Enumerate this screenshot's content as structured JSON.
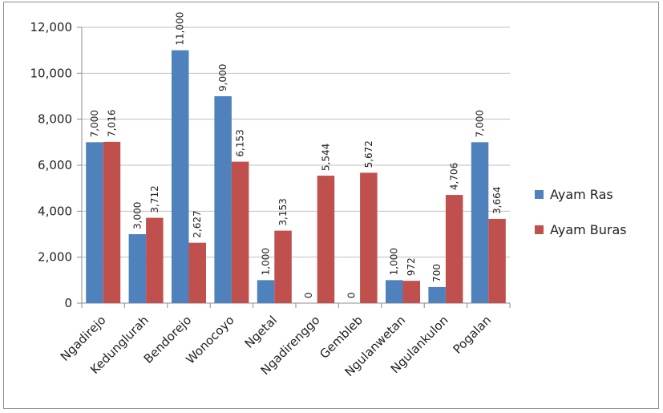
{
  "chart_data": {
    "type": "bar",
    "title": "",
    "xlabel": "",
    "ylabel": "",
    "ylim": [
      0,
      12000
    ],
    "yticks": [
      "0",
      "2,000",
      "4,000",
      "6,000",
      "8,000",
      "10,000",
      "12,000"
    ],
    "categories": [
      "Ngadirejo",
      "Kedunglurah",
      "Bendorejo",
      "Wonocoyo",
      "Ngetal",
      "Ngadirenggo",
      "Gembleb",
      "Ngulanwetan",
      "Ngulankulon",
      "Pogalan"
    ],
    "series": [
      {
        "name": "Ayam Ras",
        "color": "#4f81bd",
        "values": [
          7000,
          3000,
          11000,
          9000,
          1000,
          0,
          0,
          1000,
          700,
          7000
        ],
        "labels": [
          "7,000",
          "3,000",
          "11,000",
          "9,000",
          "1,000",
          "0",
          "0",
          "1,000",
          "700",
          "7,000"
        ]
      },
      {
        "name": "Ayam Buras",
        "color": "#c0504d",
        "values": [
          7016,
          3712,
          2627,
          6153,
          3153,
          5544,
          5672,
          972,
          4706,
          3664
        ],
        "labels": [
          "7,016",
          "3,712",
          "2,627",
          "6,153",
          "3,153",
          "5,544",
          "5,672",
          "972",
          "4,706",
          "3,664"
        ]
      }
    ],
    "grid": true,
    "legend": "right"
  }
}
